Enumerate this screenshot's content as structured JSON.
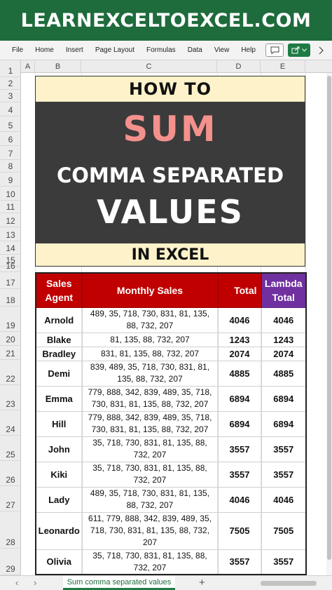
{
  "banner": {
    "text": "LEARNEXCELTOEXCEL.COM"
  },
  "menu": {
    "items": [
      "File",
      "Home",
      "Insert",
      "Page Layout",
      "Formulas",
      "Data",
      "View",
      "Help"
    ]
  },
  "toolbar": {
    "comment_icon": "comment-icon",
    "share_icon": "share-icon",
    "share_caret": "chevron-down-icon",
    "more_icon": "more-icon"
  },
  "columns": [
    "A",
    "B",
    "C",
    "D",
    "E"
  ],
  "rows": [
    "1",
    "2",
    "3",
    "4",
    "5",
    "6",
    "7",
    "8",
    "9",
    "10",
    "11",
    "12",
    "13",
    "14",
    "15",
    "16",
    "17",
    "18",
    "19",
    "20",
    "21",
    "22",
    "23",
    "24",
    "25",
    "26",
    "27",
    "28",
    "29"
  ],
  "title_card": {
    "line1": "HOW TO",
    "line2": "SUM",
    "line3": "COMMA SEPARATED",
    "line4": "VALUES",
    "line5": "IN EXCEL"
  },
  "table": {
    "headers": {
      "agent": "Sales Agent",
      "monthly": "Monthly Sales",
      "total": "Total",
      "lambda": "Lambda Total"
    },
    "rows": [
      {
        "agent": "Arnold",
        "sales": "489, 35, 718, 730, 831, 81, 135, 88, 732, 207",
        "total": "4046",
        "lambda": "4046"
      },
      {
        "agent": "Blake",
        "sales": "81, 135, 88, 732, 207",
        "total": "1243",
        "lambda": "1243"
      },
      {
        "agent": "Bradley",
        "sales": "831, 81, 135, 88, 732, 207",
        "total": "2074",
        "lambda": "2074"
      },
      {
        "agent": "Demi",
        "sales": "839, 489, 35, 718, 730, 831, 81, 135, 88, 732, 207",
        "total": "4885",
        "lambda": "4885"
      },
      {
        "agent": "Emma",
        "sales": "779, 888, 342, 839, 489, 35, 718, 730, 831, 81, 135, 88, 732, 207",
        "total": "6894",
        "lambda": "6894"
      },
      {
        "agent": "Hill",
        "sales": "779, 888, 342, 839, 489, 35, 718, 730, 831, 81, 135, 88, 732, 207",
        "total": "6894",
        "lambda": "6894"
      },
      {
        "agent": "John",
        "sales": "35, 718, 730, 831, 81, 135, 88, 732, 207",
        "total": "3557",
        "lambda": "3557"
      },
      {
        "agent": "Kiki",
        "sales": "35, 718, 730, 831, 81, 135, 88, 732, 207",
        "total": "3557",
        "lambda": "3557"
      },
      {
        "agent": "Lady",
        "sales": "489, 35, 718, 730, 831, 81, 135, 88, 732, 207",
        "total": "4046",
        "lambda": "4046"
      },
      {
        "agent": "Leonardo",
        "sales": "611, 779, 888, 342, 839, 489, 35, 718, 730, 831, 81, 135, 88, 732, 207",
        "total": "7505",
        "lambda": "7505"
      },
      {
        "agent": "Olivia",
        "sales": "35, 718, 730, 831, 81, 135, 88, 732, 207",
        "total": "3557",
        "lambda": "3557"
      }
    ]
  },
  "sheet_tabs": {
    "active": "Sum comma separated values",
    "add_icon": "plus-icon",
    "prev_icon": "chevron-left-icon",
    "next_icon": "chevron-right-icon"
  },
  "colors": {
    "banner": "#1e6b3c",
    "header_red": "#c00000",
    "header_purple": "#7030a0",
    "title_yellow": "#fdf2c9",
    "title_dark": "#3c3b3b",
    "sum_pink": "#f4918d"
  }
}
